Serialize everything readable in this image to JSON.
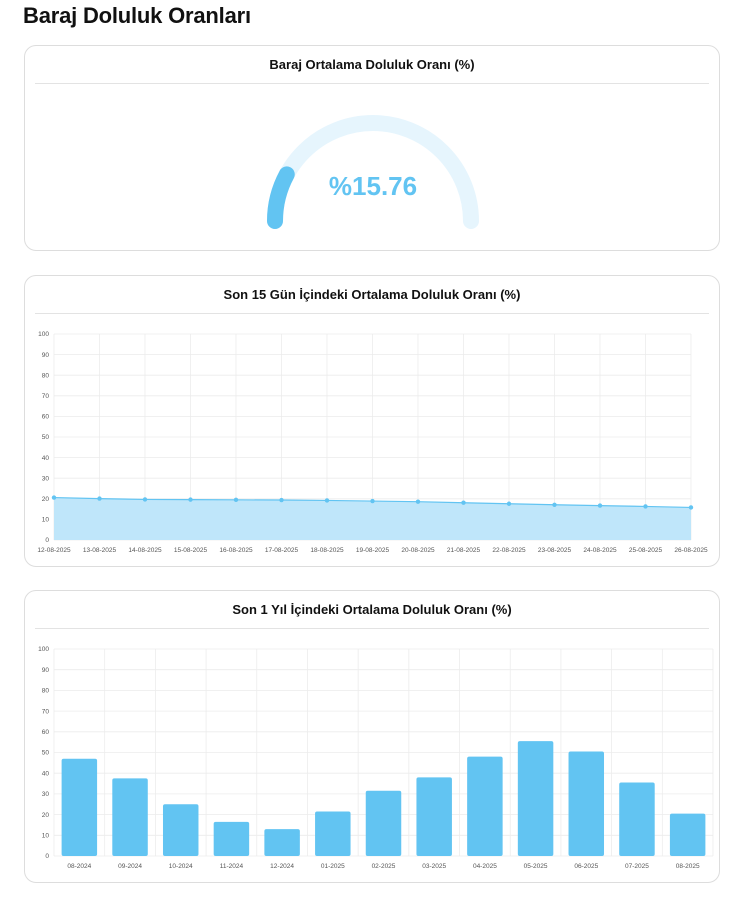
{
  "page": {
    "title": "Baraj Doluluk Oranları"
  },
  "colors": {
    "accent": "#62c4f2",
    "area": "#bfe6fa",
    "gauge_track": "#e6f5fd",
    "grid": "#ececec"
  },
  "chart_data": [
    {
      "type": "gauge",
      "title": "Baraj Ortalama Doluluk Oranı (%)",
      "value": 15.76,
      "value_label": "%15.76",
      "min": 0,
      "max": 100
    },
    {
      "type": "area",
      "title": "Son 15 Gün İçindeki Ortalama Doluluk Oranı (%)",
      "x": [
        "12-08-2025",
        "13-08-2025",
        "14-08-2025",
        "15-08-2025",
        "16-08-2025",
        "17-08-2025",
        "18-08-2025",
        "19-08-2025",
        "20-08-2025",
        "21-08-2025",
        "22-08-2025",
        "23-08-2025",
        "24-08-2025",
        "25-08-2025",
        "26-08-2025"
      ],
      "values": [
        20.6,
        20.1,
        19.7,
        19.6,
        19.5,
        19.4,
        19.2,
        18.9,
        18.6,
        18.1,
        17.6,
        17.1,
        16.7,
        16.3,
        15.8
      ],
      "ylim": [
        0,
        100
      ],
      "yticks": [
        0,
        10,
        20,
        30,
        40,
        50,
        60,
        70,
        80,
        90,
        100
      ],
      "grid": true
    },
    {
      "type": "bar",
      "title": "Son 1 Yıl İçindeki Ortalama Doluluk Oranı (%)",
      "categories": [
        "08-2024",
        "09-2024",
        "10-2024",
        "11-2024",
        "12-2024",
        "01-2025",
        "02-2025",
        "03-2025",
        "04-2025",
        "05-2025",
        "06-2025",
        "07-2025",
        "08-2025"
      ],
      "values": [
        47,
        37.5,
        25,
        16.5,
        13,
        21.5,
        31.5,
        38,
        48,
        55.5,
        50.5,
        35.5,
        20.5
      ],
      "ylim": [
        0,
        100
      ],
      "yticks": [
        0,
        10,
        20,
        30,
        40,
        50,
        60,
        70,
        80,
        90,
        100
      ],
      "grid": true
    }
  ]
}
